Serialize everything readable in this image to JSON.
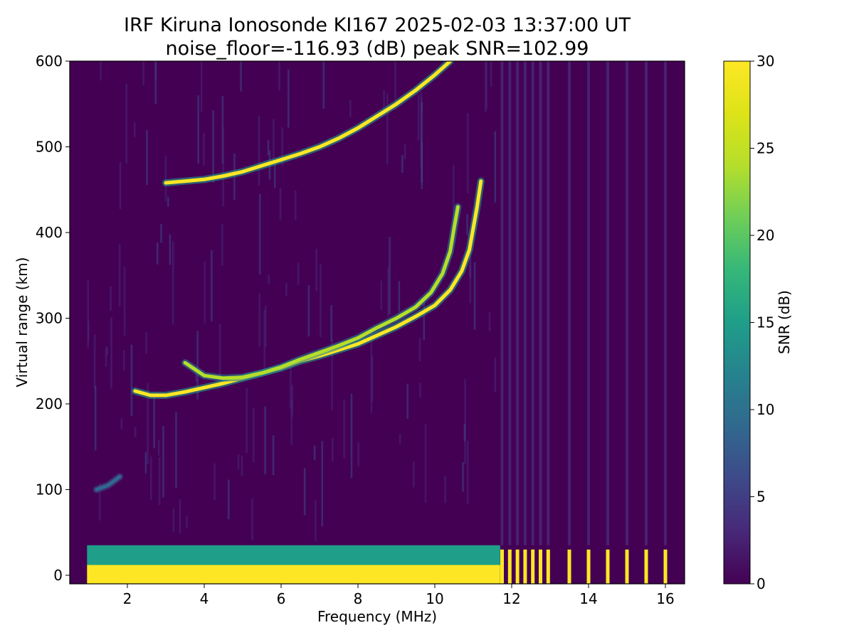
{
  "chart_data": {
    "type": "heatmap",
    "title": "IRF Kiruna Ionosonde KI167 2025-02-03 13:37:00  UT",
    "subtitle": "noise_floor=-116.93 (dB) peak SNR=102.99",
    "xlabel": "Frequency (MHz)",
    "ylabel": "Virtual range (km)",
    "colorbar_label": "SNR (dB)",
    "colormap": "viridis",
    "xlim": [
      0.5,
      16.5
    ],
    "ylim": [
      -10,
      600
    ],
    "clim": [
      0,
      30
    ],
    "x_ticks": [
      2,
      4,
      6,
      8,
      10,
      12,
      14,
      16
    ],
    "y_ticks": [
      0,
      100,
      200,
      300,
      400,
      500,
      600
    ],
    "colorbar_ticks": [
      0,
      5,
      10,
      15,
      20,
      25,
      30
    ],
    "data_extent": {
      "freq_min": 0.95,
      "freq_max": 16.45,
      "range_min": -10,
      "range_max": 600
    },
    "ground_band": {
      "range_min": -10,
      "range_max": 12,
      "freq_min": 0.95,
      "freq_max": 11.7,
      "snr": 30
    },
    "ground_fringe": {
      "range_min": 12,
      "range_max": 35,
      "snr": 14
    },
    "traces": [
      {
        "layer": "E/F1 trace (lower)",
        "snr": 29,
        "points": [
          [
            2.2,
            215
          ],
          [
            2.6,
            210
          ],
          [
            3.0,
            210
          ],
          [
            3.5,
            214
          ],
          [
            4.0,
            219
          ],
          [
            4.5,
            224
          ],
          [
            5.0,
            230
          ],
          [
            5.5,
            236
          ],
          [
            6.0,
            242
          ],
          [
            6.5,
            250
          ],
          [
            7.0,
            256
          ],
          [
            7.5,
            263
          ],
          [
            8.0,
            270
          ],
          [
            8.5,
            280
          ],
          [
            9.0,
            290
          ],
          [
            9.5,
            302
          ],
          [
            10.0,
            315
          ],
          [
            10.4,
            333
          ],
          [
            10.7,
            355
          ],
          [
            10.9,
            380
          ],
          [
            11.0,
            405
          ],
          [
            11.1,
            430
          ],
          [
            11.2,
            460
          ]
        ]
      },
      {
        "layer": "F trace (upper branch)",
        "snr": 24,
        "points": [
          [
            3.5,
            248
          ],
          [
            4.0,
            233
          ],
          [
            4.5,
            230
          ],
          [
            5.0,
            231
          ],
          [
            5.5,
            236
          ],
          [
            6.0,
            243
          ],
          [
            6.5,
            252
          ],
          [
            7.0,
            260
          ],
          [
            7.5,
            268
          ],
          [
            8.0,
            277
          ],
          [
            8.5,
            289
          ],
          [
            9.0,
            300
          ],
          [
            9.5,
            313
          ],
          [
            9.9,
            330
          ],
          [
            10.2,
            352
          ],
          [
            10.4,
            378
          ],
          [
            10.5,
            405
          ],
          [
            10.6,
            430
          ]
        ]
      },
      {
        "layer": "multi-hop echo",
        "snr": 30,
        "points": [
          [
            3.0,
            458
          ],
          [
            3.5,
            460
          ],
          [
            4.0,
            462
          ],
          [
            4.5,
            466
          ],
          [
            5.0,
            471
          ],
          [
            5.5,
            478
          ],
          [
            6.0,
            485
          ],
          [
            6.5,
            492
          ],
          [
            7.0,
            500
          ],
          [
            7.5,
            510
          ],
          [
            8.0,
            522
          ],
          [
            8.5,
            536
          ],
          [
            9.0,
            550
          ],
          [
            9.5,
            566
          ],
          [
            10.0,
            584
          ],
          [
            10.4,
            600
          ]
        ]
      },
      {
        "layer": "sporadic echo",
        "snr": 10,
        "points": [
          [
            1.2,
            100
          ],
          [
            1.5,
            105
          ],
          [
            1.8,
            115
          ]
        ]
      }
    ],
    "high_freq_spikes_mhz": [
      11.75,
      11.95,
      12.15,
      12.35,
      12.55,
      12.75,
      12.95,
      13.5,
      14.0,
      14.5,
      15.0,
      15.5,
      16.0
    ]
  }
}
